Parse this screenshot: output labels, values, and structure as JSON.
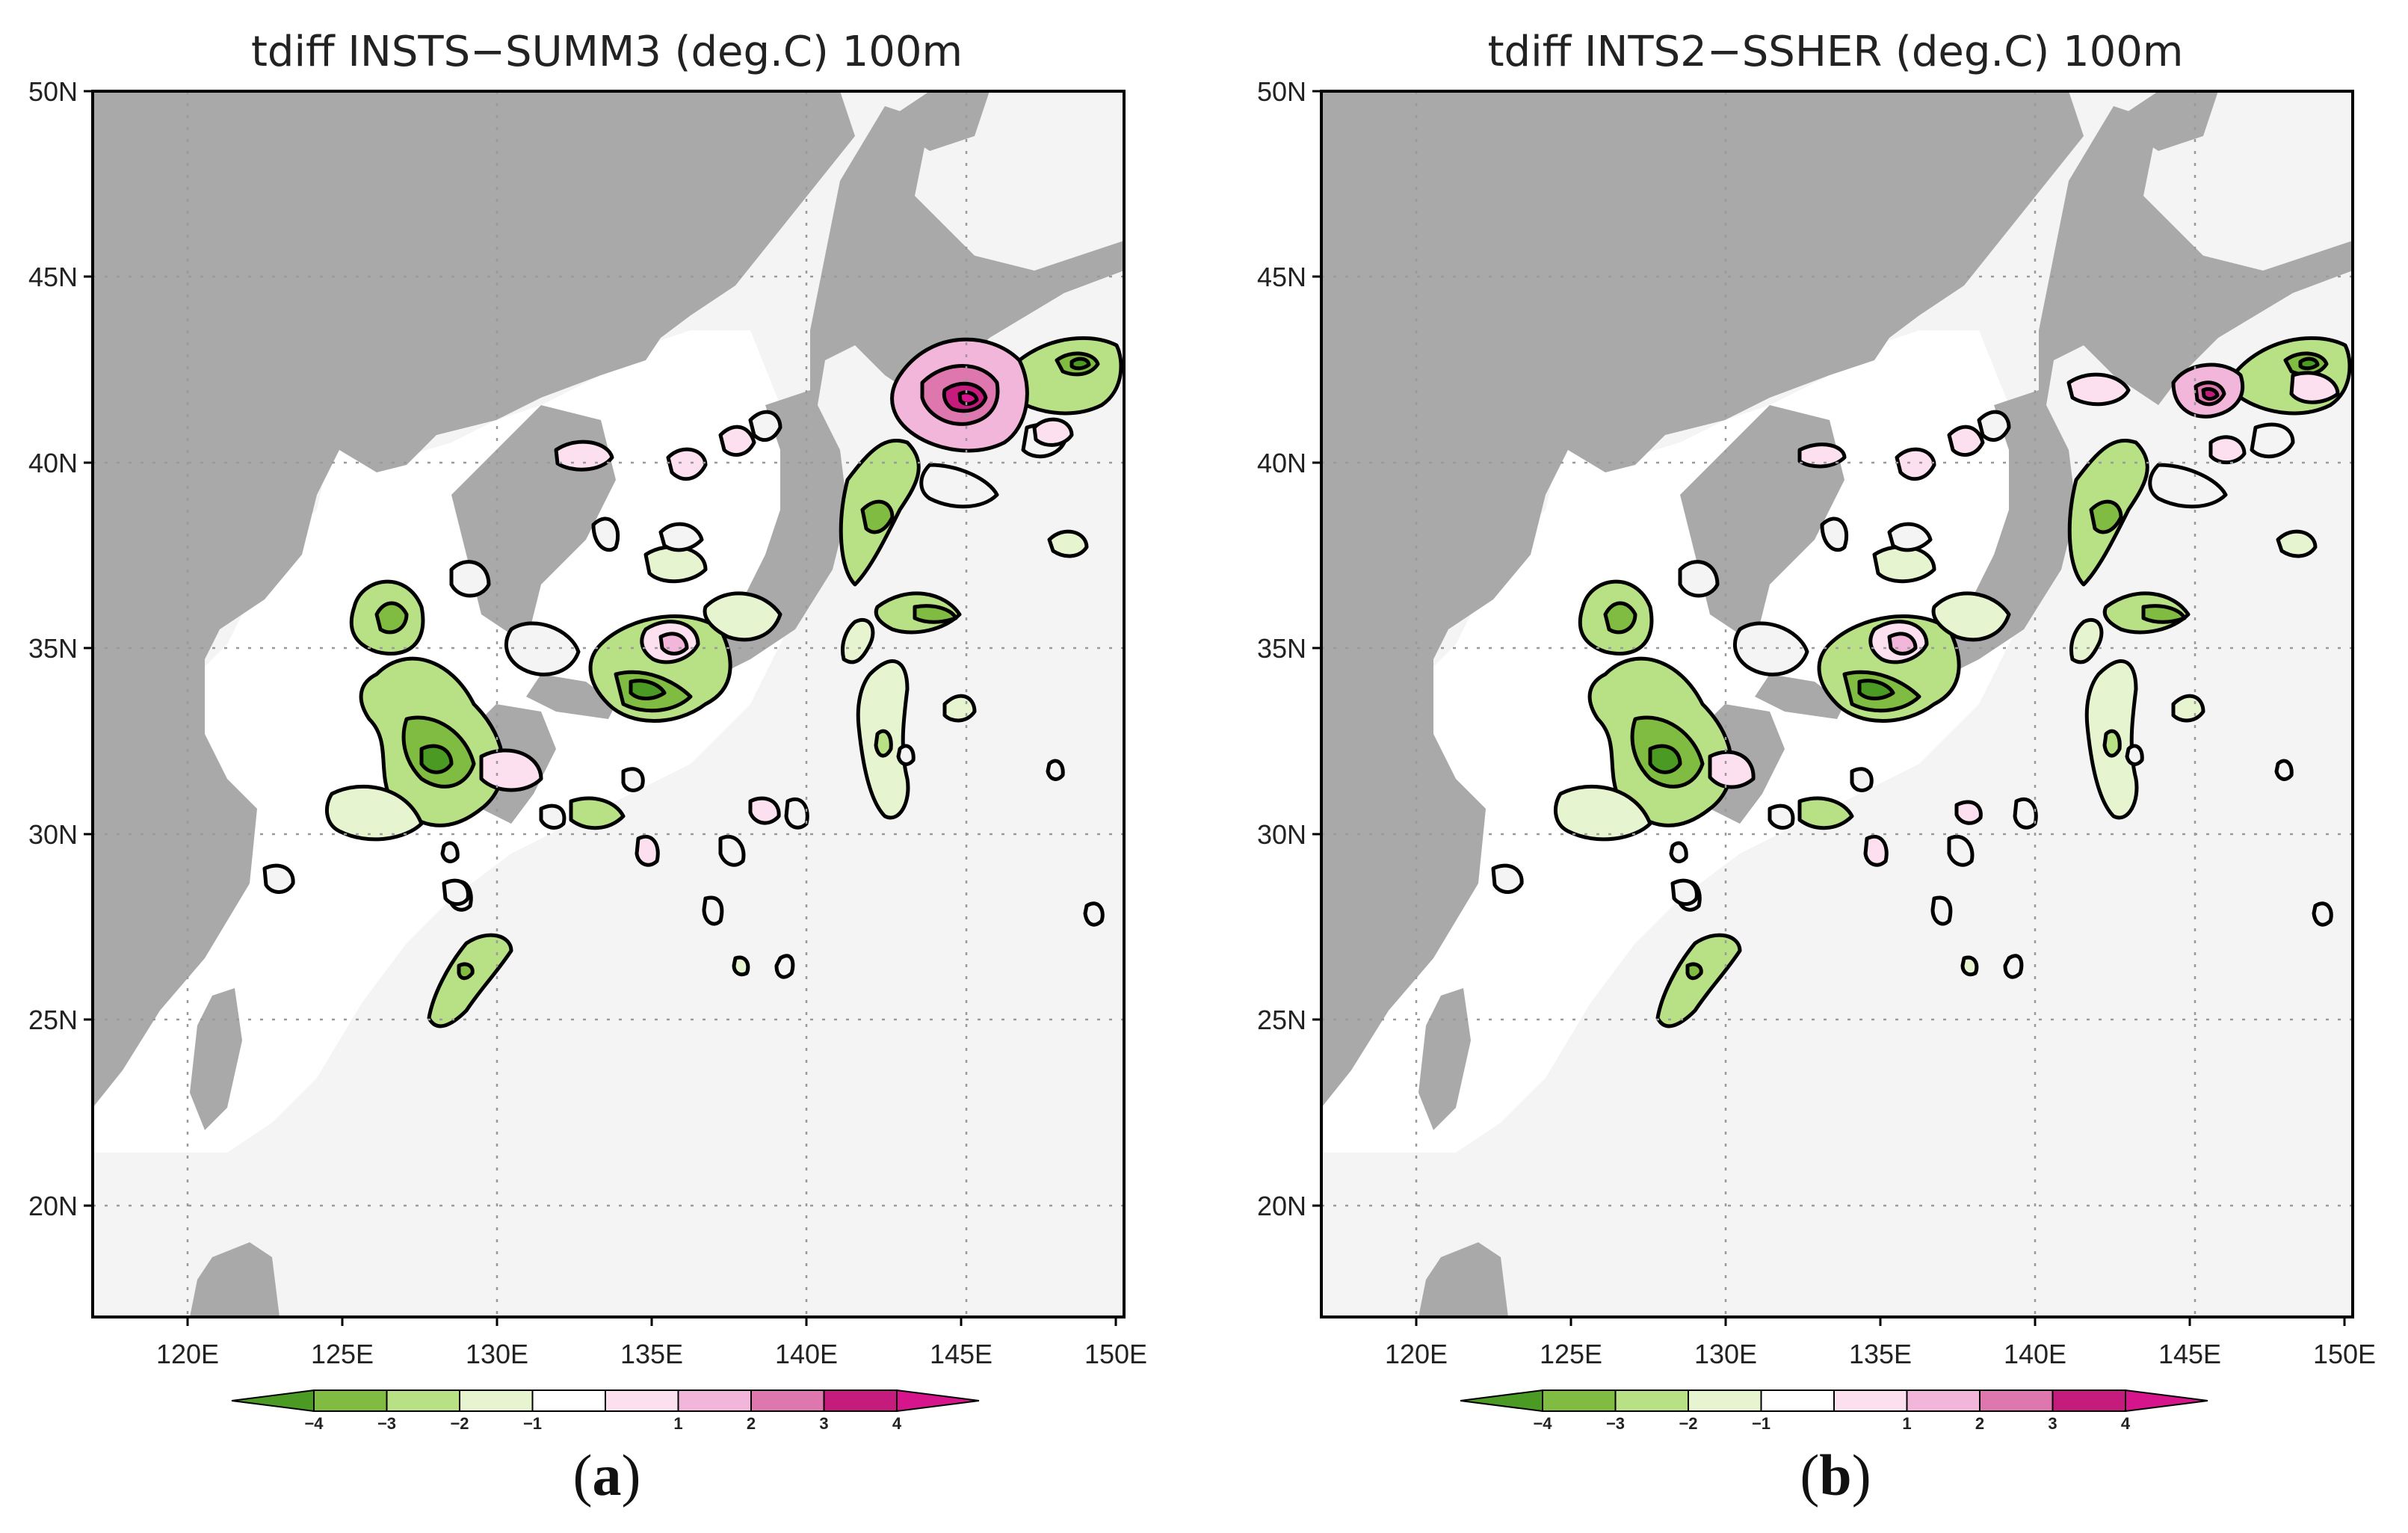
{
  "figure": {
    "panels": [
      {
        "id": "a",
        "title": "tdiff INSTS−SUMM3 (deg.C) 100m",
        "label_open": "(",
        "label_letter": "a",
        "label_close": ")"
      },
      {
        "id": "b",
        "title": "tdiff INTS2−SSHER (deg.C) 100m",
        "label_open": "(",
        "label_letter": "b",
        "label_close": ")"
      }
    ],
    "lat_labels": [
      "50N",
      "45N",
      "40N",
      "35N",
      "30N",
      "25N",
      "20N"
    ],
    "lon_labels": [
      "120E",
      "125E",
      "130E",
      "135E",
      "140E",
      "145E",
      "150E"
    ],
    "colorbar": {
      "ticks": [
        "−4",
        "−3",
        "−2",
        "−1",
        "1",
        "2",
        "3",
        "4"
      ],
      "colors": [
        "#4a9a23",
        "#7fbc41",
        "#b8e186",
        "#e6f5d0",
        "#ffffff",
        "#fde0ef",
        "#f1b6da",
        "#de77ae",
        "#c51b7d",
        "#d6148c"
      ]
    },
    "colors": {
      "land": "#a9a9a9",
      "ocean": "#f4f4f4",
      "shelf": "#ffffff",
      "grid": "#9a9a9a",
      "contour": "#000000"
    }
  }
}
